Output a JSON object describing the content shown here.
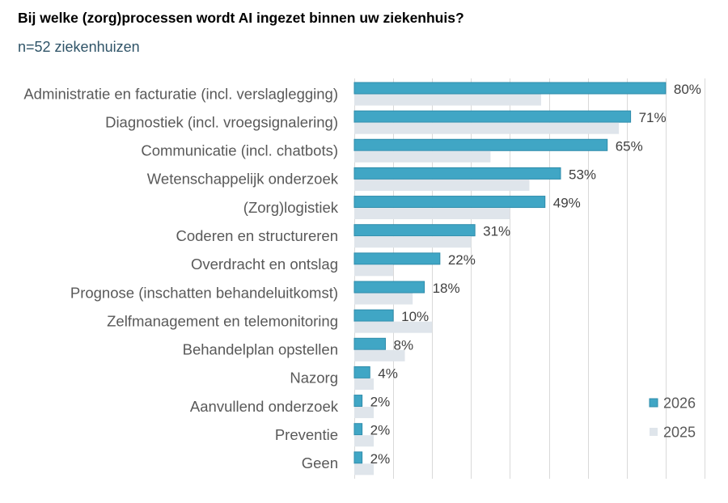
{
  "chart_data": {
    "type": "bar",
    "orientation": "horizontal",
    "title": "Bij welke (zorg)processen wordt AI ingezet binnen uw ziekenhuis?",
    "subtitle": "n=52 ziekenhuizen",
    "categories": [
      "Administratie en facturatie (incl. verslaglegging)",
      "Diagnostiek (incl. vroegsignalering)",
      "Communicatie (incl. chatbots)",
      "Wetenschappelijk onderzoek",
      "(Zorg)logistiek",
      "Coderen en structureren",
      "Overdracht en ontslag",
      "Prognose (inschatten behandeluitkomst)",
      "Zelfmanagement en telemonitoring",
      "Behandelplan opstellen",
      "Nazorg",
      "Aanvullend onderzoek",
      "Preventie",
      "Geen"
    ],
    "series": [
      {
        "name": "2026",
        "color": "#40a6c5",
        "values": [
          80,
          71,
          65,
          53,
          49,
          31,
          22,
          18,
          10,
          8,
          4,
          2,
          2,
          2
        ],
        "labels": [
          "80%",
          "71%",
          "65%",
          "53%",
          "49%",
          "31%",
          "22%",
          "18%",
          "10%",
          "8%",
          "4%",
          "2%",
          "2%",
          "2%"
        ]
      },
      {
        "name": "2025",
        "color": "#dfe5eb",
        "values": [
          48,
          68,
          35,
          45,
          40,
          30,
          10,
          15,
          20,
          13,
          5,
          5,
          5,
          5
        ]
      }
    ],
    "xlim": [
      0,
      90
    ],
    "x_grid_interval": 10,
    "grid": true,
    "legend": "bottom-right"
  }
}
